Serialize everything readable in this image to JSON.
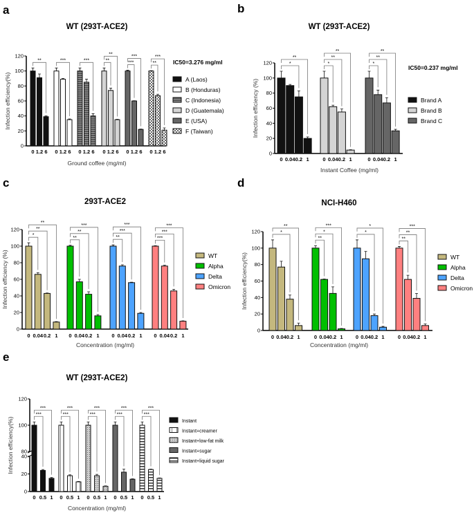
{
  "colors": {
    "WT": "#c4b87e",
    "Alpha": "#00bf00",
    "Delta": "#4da3ff",
    "Omicron": "#ff8080"
  },
  "chart_data": [
    {
      "panel": "a",
      "type": "bar",
      "title": "WT (293T-ACE2)",
      "xlabel": "Ground coffee (mg/ml)",
      "ylabel": "Infection efficiency(%)",
      "ylim": [
        0,
        120
      ],
      "yticks": [
        0,
        20,
        40,
        60,
        80,
        100,
        120
      ],
      "annotation": "IC50=3.276 mg/ml",
      "legend_position": "right",
      "categories": [
        "0",
        "1.2",
        "6"
      ],
      "series": [
        {
          "name": "A (Laos)",
          "fill": "black",
          "values": [
            100,
            91,
            39
          ],
          "errors": [
            4,
            5,
            1
          ]
        },
        {
          "name": "B (Honduras)",
          "fill": "white",
          "values": [
            100,
            89,
            35
          ],
          "errors": [
            4,
            1,
            1
          ]
        },
        {
          "name": "C (Indonesia)",
          "fill": "dark-gray-striped",
          "values": [
            100,
            85,
            40
          ],
          "errors": [
            4,
            4,
            3
          ]
        },
        {
          "name": "D (Guatemala)",
          "fill": "light-gray",
          "values": [
            100,
            74,
            35
          ],
          "errors": [
            4,
            3,
            0.5
          ]
        },
        {
          "name": "E (USA)",
          "fill": "gray",
          "values": [
            100,
            60,
            22
          ],
          "errors": [
            1,
            0.3,
            0.5
          ]
        },
        {
          "name": "F (Taiwan)",
          "fill": "checkered",
          "values": [
            100,
            67,
            21
          ],
          "errors": [
            0.5,
            2,
            3
          ]
        }
      ],
      "significance": [
        {
          "series": 0,
          "from": 0,
          "to": 2,
          "label": "**"
        },
        {
          "series": 1,
          "from": 0,
          "to": 2,
          "label": "***"
        },
        {
          "series": 2,
          "from": 0,
          "to": 2,
          "label": "***"
        },
        {
          "series": 3,
          "from": 0,
          "to": 1,
          "label": "**"
        },
        {
          "series": 3,
          "from": 0,
          "to": 2,
          "label": "**"
        },
        {
          "series": 4,
          "from": 0,
          "to": 1,
          "label": "***"
        },
        {
          "series": 4,
          "from": 0,
          "to": 2,
          "label": "***"
        },
        {
          "series": 5,
          "from": 0,
          "to": 1,
          "label": "**"
        },
        {
          "series": 5,
          "from": 0,
          "to": 2,
          "label": "***"
        }
      ]
    },
    {
      "panel": "b",
      "type": "bar",
      "title": "WT (293T-ACE2)",
      "xlabel": "Instant Coffee (mg/ml)",
      "ylabel": "Infection efficiency (%)",
      "ylim": [
        0,
        120
      ],
      "yticks": [
        0,
        20,
        40,
        60,
        80,
        100,
        120
      ],
      "annotation": "IC50=0.237 mg/ml",
      "legend_position": "right",
      "categories": [
        "0",
        "0.04",
        "0.2",
        "1"
      ],
      "series": [
        {
          "name": "Brand A",
          "fill": "black",
          "values": [
            100,
            90,
            75,
            20
          ],
          "errors": [
            9,
            1.5,
            8,
            2
          ]
        },
        {
          "name": "Brand B",
          "fill": "light-gray",
          "values": [
            100,
            62,
            55,
            4.5
          ],
          "errors": [
            9,
            2,
            4,
            0.5
          ]
        },
        {
          "name": "Brand C",
          "fill": "gray",
          "values": [
            100,
            78,
            67,
            30
          ],
          "errors": [
            9,
            6,
            7,
            2
          ]
        }
      ],
      "significance": [
        {
          "series": 0,
          "from": 0,
          "to": 2,
          "label": "*"
        },
        {
          "series": 0,
          "from": 0,
          "to": 3,
          "label": "**"
        },
        {
          "series": 1,
          "from": 0,
          "to": 1,
          "label": "*"
        },
        {
          "series": 1,
          "from": 0,
          "to": 2,
          "label": "**"
        },
        {
          "series": 1,
          "from": 0,
          "to": 3,
          "label": "**"
        },
        {
          "series": 2,
          "from": 0,
          "to": 1,
          "label": "*"
        },
        {
          "series": 2,
          "from": 0,
          "to": 2,
          "label": "**"
        },
        {
          "series": 2,
          "from": 0,
          "to": 3,
          "label": "**"
        }
      ]
    },
    {
      "panel": "c",
      "type": "bar",
      "title": "293T-ACE2",
      "xlabel": "Concentration (mg/ml)",
      "ylabel": "Infection efficiency (%)",
      "ylim": [
        0,
        120
      ],
      "yticks": [
        0,
        20,
        40,
        60,
        80,
        100,
        120
      ],
      "legend_position": "right",
      "categories": [
        "0",
        "0.04",
        "0.2",
        "1"
      ],
      "series": [
        {
          "name": "WT",
          "fill": "#c4b87e",
          "values": [
            100,
            66,
            43,
            8.5
          ],
          "errors": [
            4,
            2,
            0.5,
            0.5
          ]
        },
        {
          "name": "Alpha",
          "fill": "#00bf00",
          "values": [
            100,
            57,
            42,
            16
          ],
          "errors": [
            1,
            3,
            3,
            1.5
          ]
        },
        {
          "name": "Delta",
          "fill": "#4da3ff",
          "values": [
            100,
            76,
            56,
            19
          ],
          "errors": [
            1.5,
            1.5,
            0.5,
            1
          ]
        },
        {
          "name": "Omicron",
          "fill": "#ff8080",
          "values": [
            100,
            76,
            46,
            9.5
          ],
          "errors": [
            0.5,
            1,
            2,
            0.5
          ]
        }
      ],
      "significance": [
        {
          "series": 0,
          "from": 0,
          "to": 1,
          "label": "*"
        },
        {
          "series": 0,
          "from": 0,
          "to": 2,
          "label": "**"
        },
        {
          "series": 0,
          "from": 0,
          "to": 3,
          "label": "**"
        },
        {
          "series": 1,
          "from": 0,
          "to": 1,
          "label": "**"
        },
        {
          "series": 1,
          "from": 0,
          "to": 2,
          "label": "**"
        },
        {
          "series": 1,
          "from": 0,
          "to": 3,
          "label": "***"
        },
        {
          "series": 2,
          "from": 0,
          "to": 1,
          "label": "**"
        },
        {
          "series": 2,
          "from": 0,
          "to": 2,
          "label": "***"
        },
        {
          "series": 2,
          "from": 0,
          "to": 3,
          "label": "***"
        },
        {
          "series": 3,
          "from": 0,
          "to": 1,
          "label": "***"
        },
        {
          "series": 3,
          "from": 0,
          "to": 2,
          "label": "***"
        },
        {
          "series": 3,
          "from": 0,
          "to": 3,
          "label": "***"
        }
      ]
    },
    {
      "panel": "d",
      "type": "bar",
      "title": "NCI-H460",
      "xlabel": "Concentration (mg/ml)",
      "ylabel": "Infection efficiency(%)",
      "ylim": [
        0,
        120
      ],
      "yticks": [
        0,
        20,
        40,
        60,
        80,
        100,
        120
      ],
      "legend_position": "right",
      "categories": [
        "0",
        "0.04",
        "0.2",
        "1"
      ],
      "series": [
        {
          "name": "WT",
          "fill": "#c4b87e",
          "values": [
            100,
            77,
            38,
            6
          ],
          "errors": [
            10,
            7,
            5,
            3
          ]
        },
        {
          "name": "Alpha",
          "fill": "#00bf00",
          "values": [
            100,
            62,
            45,
            2
          ],
          "errors": [
            3,
            0.5,
            8,
            0.5
          ]
        },
        {
          "name": "Delta",
          "fill": "#4da3ff",
          "values": [
            100,
            87,
            18,
            4
          ],
          "errors": [
            10,
            9,
            2,
            1
          ]
        },
        {
          "name": "Omicron",
          "fill": "#ff8080",
          "values": [
            100,
            62,
            39,
            6
          ],
          "errors": [
            2,
            5,
            6,
            2
          ]
        }
      ],
      "significance": [
        {
          "series": 0,
          "from": 0,
          "to": 2,
          "label": "*"
        },
        {
          "series": 0,
          "from": 0,
          "to": 3,
          "label": "**"
        },
        {
          "series": 1,
          "from": 0,
          "to": 1,
          "label": "**"
        },
        {
          "series": 1,
          "from": 0,
          "to": 2,
          "label": "*"
        },
        {
          "series": 1,
          "from": 0,
          "to": 3,
          "label": "***"
        },
        {
          "series": 2,
          "from": 0,
          "to": 2,
          "label": "*"
        },
        {
          "series": 2,
          "from": 0,
          "to": 3,
          "label": "*"
        },
        {
          "series": 3,
          "from": 0,
          "to": 1,
          "label": "**"
        },
        {
          "series": 3,
          "from": 0,
          "to": 2,
          "label": "**"
        },
        {
          "series": 3,
          "from": 0,
          "to": 3,
          "label": "***"
        }
      ]
    },
    {
      "panel": "e",
      "type": "bar",
      "title": "WT (293T-ACE2)",
      "xlabel": "Concentration (mg/ml)",
      "ylabel": "Infection efficiency(%)",
      "ylim": [
        0,
        120
      ],
      "y_axis_break": [
        40,
        80
      ],
      "yticks": [
        0,
        20,
        40,
        80,
        100,
        120
      ],
      "legend_position": "right",
      "categories": [
        "0",
        "0.5",
        "1"
      ],
      "series": [
        {
          "name": "Instant",
          "fill": "black",
          "values": [
            100,
            24,
            15
          ],
          "errors": [
            2.5,
            1,
            1
          ]
        },
        {
          "name": "Instant+creamer",
          "fill": "white-lined",
          "values": [
            100,
            18,
            11
          ],
          "errors": [
            2.5,
            1,
            0.5
          ]
        },
        {
          "name": "Instant+low-fat milk",
          "fill": "dotted",
          "values": [
            100,
            18,
            6
          ],
          "errors": [
            2.5,
            1.5,
            0.5
          ]
        },
        {
          "name": "Instant+sugar",
          "fill": "gray",
          "values": [
            100,
            22,
            14
          ],
          "errors": [
            2.5,
            3.5,
            0.5
          ]
        },
        {
          "name": "Instant+liquid sugar",
          "fill": "horizontal-striped",
          "values": [
            100,
            25,
            15
          ],
          "errors": [
            2.5,
            0.5,
            0.5
          ]
        }
      ],
      "significance": [
        {
          "series": 0,
          "from": 0,
          "to": 1,
          "label": "***"
        },
        {
          "series": 0,
          "from": 0,
          "to": 2,
          "label": "***"
        },
        {
          "series": 1,
          "from": 0,
          "to": 1,
          "label": "***"
        },
        {
          "series": 1,
          "from": 0,
          "to": 2,
          "label": "***"
        },
        {
          "series": 2,
          "from": 0,
          "to": 1,
          "label": "***"
        },
        {
          "series": 2,
          "from": 0,
          "to": 2,
          "label": "***"
        },
        {
          "series": 3,
          "from": 0,
          "to": 1,
          "label": "***"
        },
        {
          "series": 3,
          "from": 0,
          "to": 2,
          "label": "***"
        },
        {
          "series": 4,
          "from": 0,
          "to": 1,
          "label": "***"
        },
        {
          "series": 4,
          "from": 0,
          "to": 2,
          "label": "***"
        }
      ]
    }
  ]
}
